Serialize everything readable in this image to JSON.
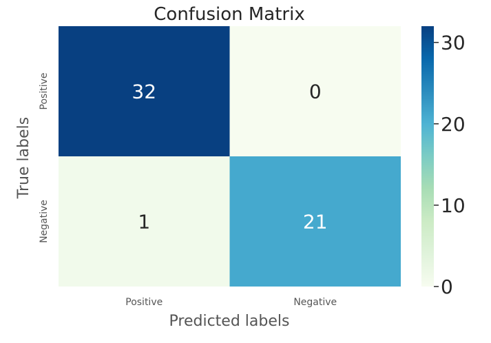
{
  "chart_data": {
    "type": "heatmap",
    "title": "Confusion Matrix",
    "xlabel": "Predicted labels",
    "ylabel": "True labels",
    "x_categories": [
      "Positive",
      "Negative"
    ],
    "y_categories": [
      "Positive",
      "Negative"
    ],
    "values": [
      [
        32,
        0
      ],
      [
        1,
        21
      ]
    ],
    "colormap": "GnBu",
    "colorbar": {
      "min": 0,
      "max": 32,
      "ticks": [
        0,
        10,
        20,
        30
      ],
      "tick_labels": [
        "0",
        "10",
        "20",
        "30"
      ],
      "low_color": "#f7fcf0",
      "high_color": "#084081"
    },
    "annotation_color_light": "#ffffff",
    "annotation_color_dark": "#262626",
    "label_color": "#555555"
  }
}
